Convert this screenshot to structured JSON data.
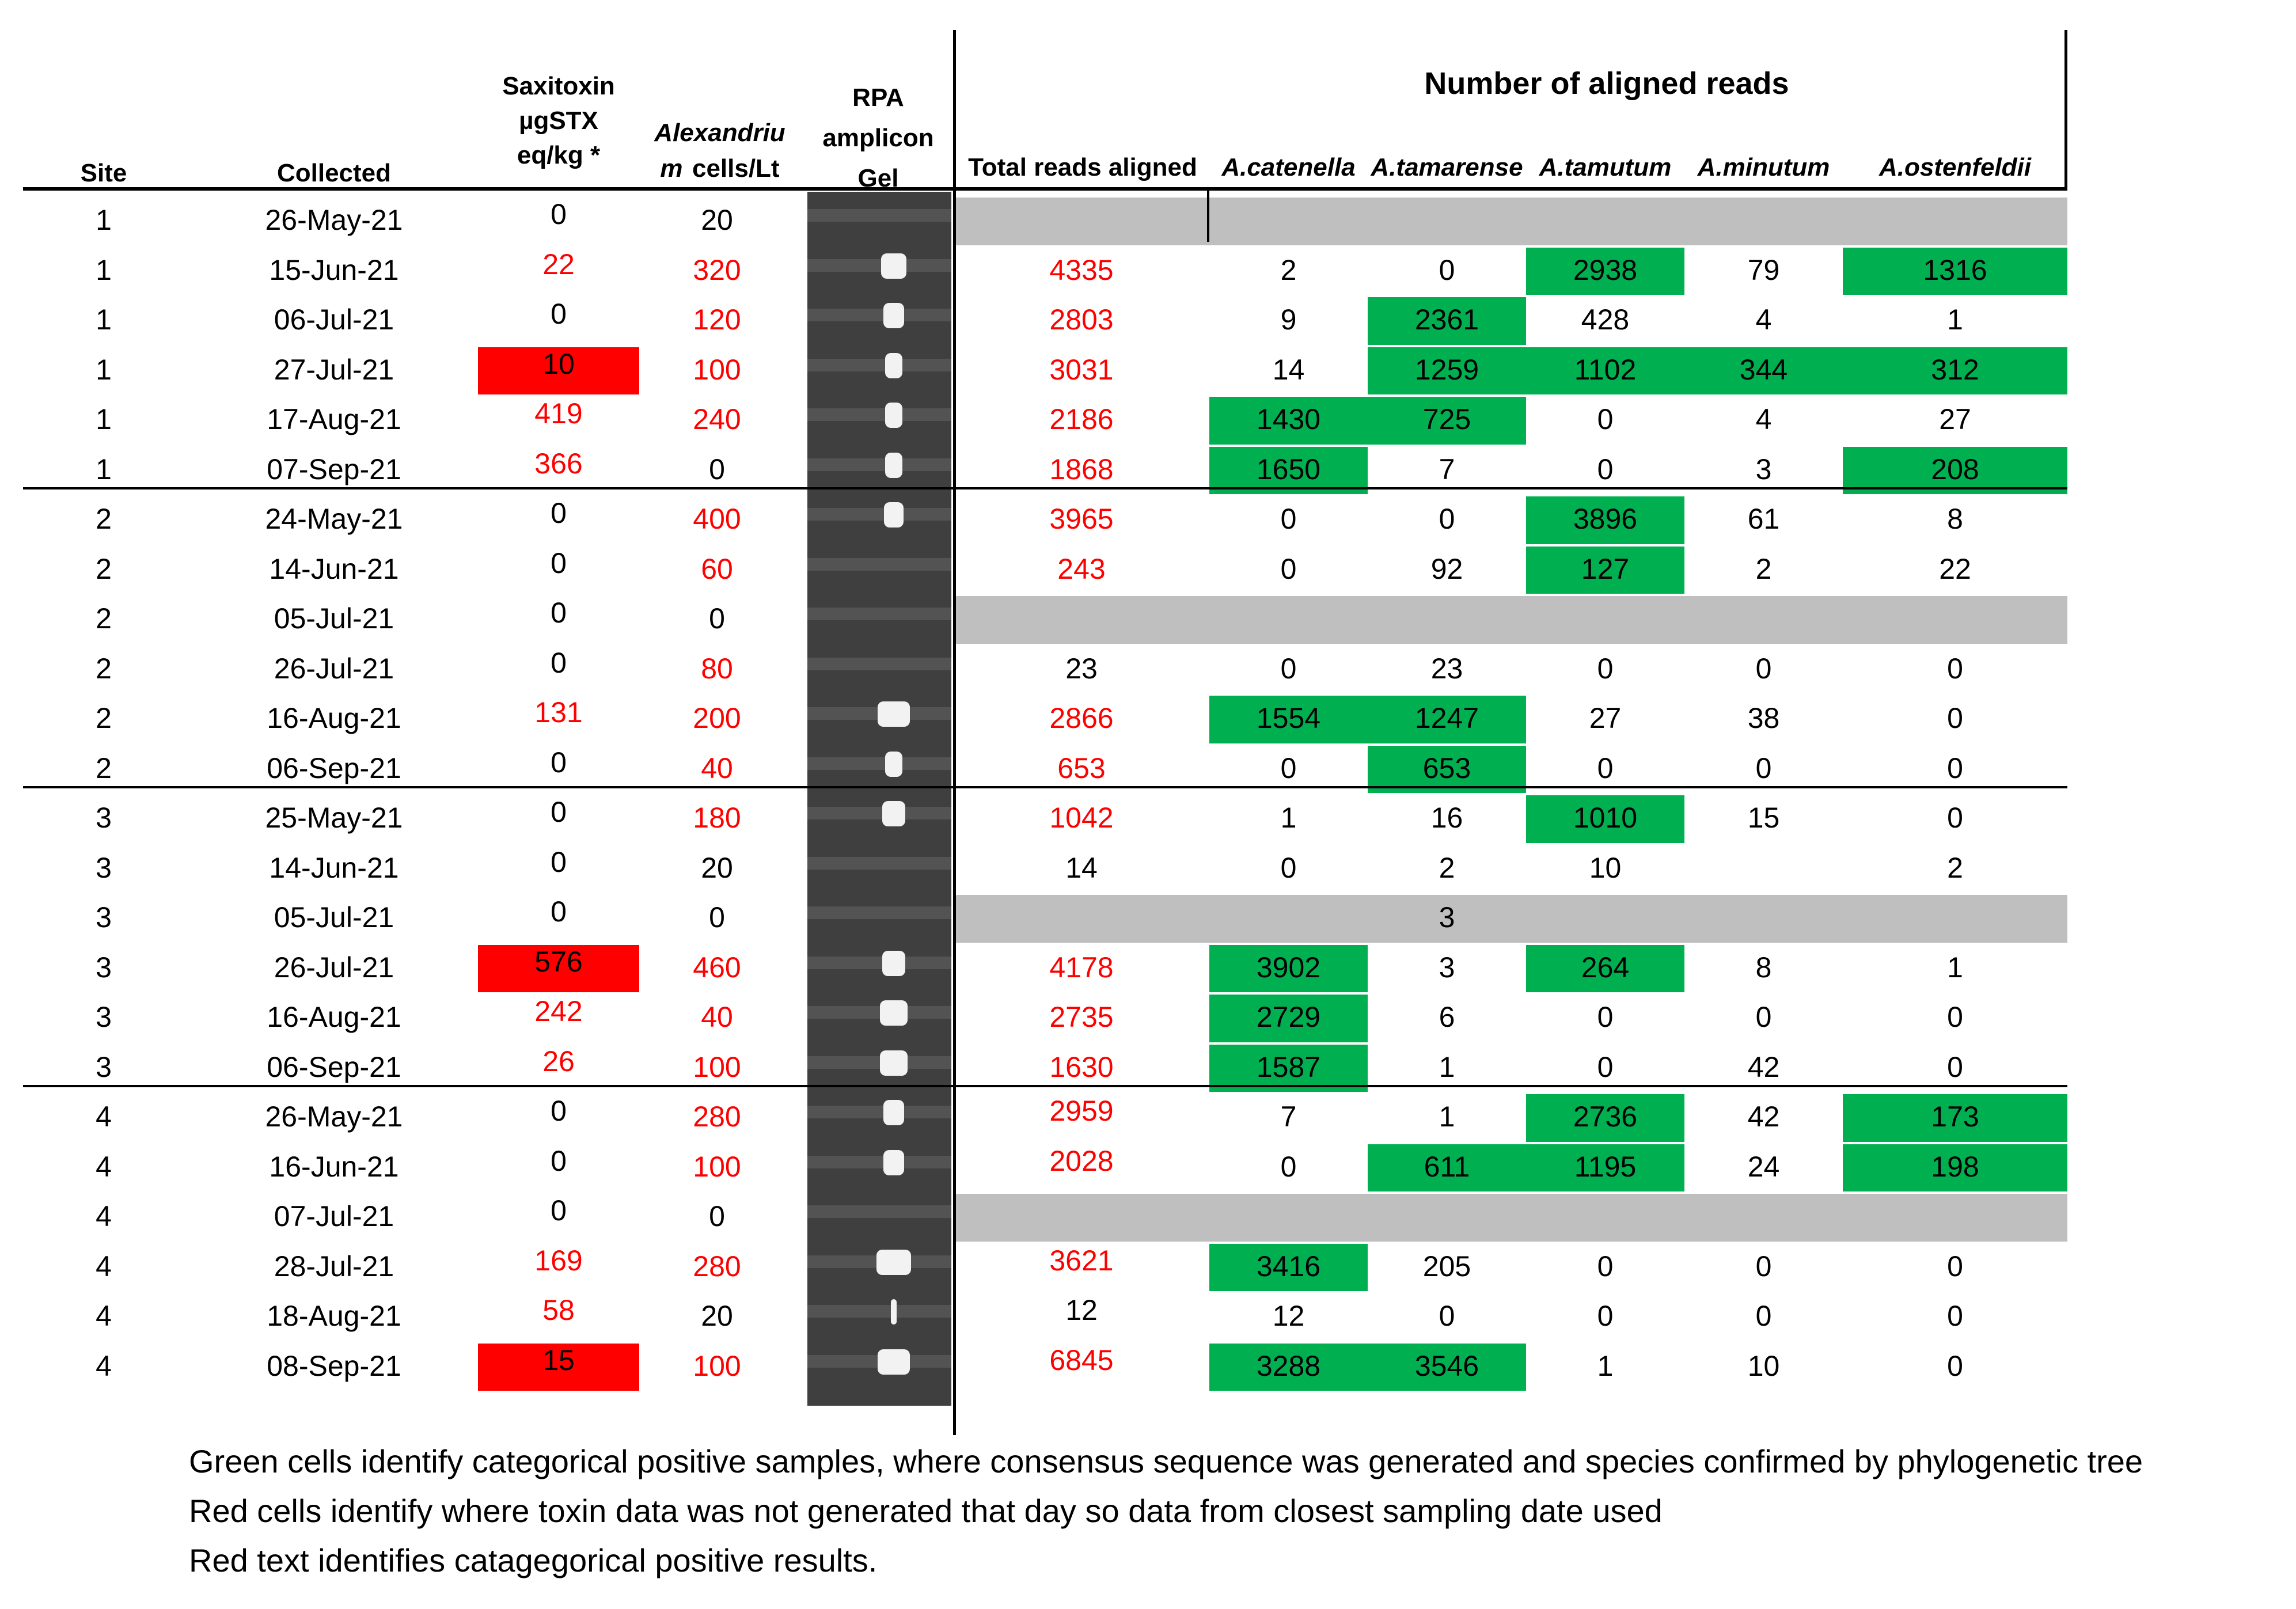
{
  "headers": {
    "site": "Site",
    "collected": "Collected",
    "saxitoxin_l1": "Saxitoxin",
    "saxitoxin_l2": "µgSTX",
    "saxitoxin_l3": "eq/kg *",
    "alex_l1": "Alexandriu",
    "alex_l2": "m",
    "alex_l2b": "cells/Lt",
    "rpa_l1": "RPA",
    "rpa_l2": "amplicon",
    "rpa_l3": "Gel",
    "aligned_title": "Number of aligned reads",
    "total": "Total reads aligned",
    "catenella": "A.catenella",
    "tamarense": "A.tamarense",
    "tamutum": "A.tamutum",
    "minutum": "A.minutum",
    "ostenfeldii": "A.ostenfeldii"
  },
  "colors": {
    "green": "#00b050",
    "red": "#ff0000",
    "grey": "#bfbfbf",
    "text_red": "#ff0000"
  },
  "rows": [
    {
      "site": "1",
      "date": "26-May-21",
      "stx": "0",
      "cells": "20",
      "total": "",
      "cat": "",
      "tam": "",
      "tmt": "",
      "min": "",
      "ost": ""
    },
    {
      "site": "1",
      "date": "15-Jun-21",
      "stx": "22",
      "cells": "320",
      "total": "4335",
      "cat": "2",
      "tam": "0",
      "tmt": "2938",
      "min": "79",
      "ost": "1316"
    },
    {
      "site": "1",
      "date": "06-Jul-21",
      "stx": "0",
      "cells": "120",
      "total": "2803",
      "cat": "9",
      "tam": "2361",
      "tmt": "428",
      "min": "4",
      "ost": "1"
    },
    {
      "site": "1",
      "date": "27-Jul-21",
      "stx": "10",
      "cells": "100",
      "total": "3031",
      "cat": "14",
      "tam": "1259",
      "tmt": "1102",
      "min": "344",
      "ost": "312"
    },
    {
      "site": "1",
      "date": "17-Aug-21",
      "stx": "419",
      "cells": "240",
      "total": "2186",
      "cat": "1430",
      "tam": "725",
      "tmt": "0",
      "min": "4",
      "ost": "27"
    },
    {
      "site": "1",
      "date": "07-Sep-21",
      "stx": "366",
      "cells": "0",
      "total": "1868",
      "cat": "1650",
      "tam": "7",
      "tmt": "0",
      "min": "3",
      "ost": "208"
    },
    {
      "site": "2",
      "date": "24-May-21",
      "stx": "0",
      "cells": "400",
      "total": "3965",
      "cat": "0",
      "tam": "0",
      "tmt": "3896",
      "min": "61",
      "ost": "8"
    },
    {
      "site": "2",
      "date": "14-Jun-21",
      "stx": "0",
      "cells": "60",
      "total": "243",
      "cat": "0",
      "tam": "92",
      "tmt": "127",
      "min": "2",
      "ost": "22"
    },
    {
      "site": "2",
      "date": "05-Jul-21",
      "stx": "0",
      "cells": "0",
      "total": "",
      "cat": "",
      "tam": "",
      "tmt": "",
      "min": "",
      "ost": ""
    },
    {
      "site": "2",
      "date": "26-Jul-21",
      "stx": "0",
      "cells": "80",
      "total": "23",
      "cat": "0",
      "tam": "23",
      "tmt": "0",
      "min": "0",
      "ost": "0"
    },
    {
      "site": "2",
      "date": "16-Aug-21",
      "stx": "131",
      "cells": "200",
      "total": "2866",
      "cat": "1554",
      "tam": "1247",
      "tmt": "27",
      "min": "38",
      "ost": "0"
    },
    {
      "site": "2",
      "date": "06-Sep-21",
      "stx": "0",
      "cells": "40",
      "total": "653",
      "cat": "0",
      "tam": "653",
      "tmt": "0",
      "min": "0",
      "ost": "0"
    },
    {
      "site": "3",
      "date": "25-May-21",
      "stx": "0",
      "cells": "180",
      "total": "1042",
      "cat": "1",
      "tam": "16",
      "tmt": "1010",
      "min": "15",
      "ost": "0"
    },
    {
      "site": "3",
      "date": "14-Jun-21",
      "stx": "0",
      "cells": "20",
      "total": "14",
      "cat": "0",
      "tam": "2",
      "tmt": "10",
      "min": "",
      "ost": "2"
    },
    {
      "site": "3",
      "date": "05-Jul-21",
      "stx": "0",
      "cells": "0",
      "total": "",
      "cat": "",
      "tam": "3",
      "tmt": "",
      "min": "",
      "ost": ""
    },
    {
      "site": "3",
      "date": "26-Jul-21",
      "stx": "576",
      "cells": "460",
      "total": "4178",
      "cat": "3902",
      "tam": "3",
      "tmt": "264",
      "min": "8",
      "ost": "1"
    },
    {
      "site": "3",
      "date": "16-Aug-21",
      "stx": "242",
      "cells": "40",
      "total": "2735",
      "cat": "2729",
      "tam": "6",
      "tmt": "0",
      "min": "0",
      "ost": "0"
    },
    {
      "site": "3",
      "date": "06-Sep-21",
      "stx": "26",
      "cells": "100",
      "total": "1630",
      "cat": "1587",
      "tam": "1",
      "tmt": "0",
      "min": "42",
      "ost": "0"
    },
    {
      "site": "4",
      "date": "26-May-21",
      "stx": "0",
      "cells": "280",
      "total": "2959",
      "cat": "7",
      "tam": "1",
      "tmt": "2736",
      "min": "42",
      "ost": "173"
    },
    {
      "site": "4",
      "date": "16-Jun-21",
      "stx": "0",
      "cells": "100",
      "total": "2028",
      "cat": "0",
      "tam": "611",
      "tmt": "1195",
      "min": "24",
      "ost": "198"
    },
    {
      "site": "4",
      "date": "07-Jul-21",
      "stx": "0",
      "cells": "0",
      "total": "",
      "cat": "",
      "tam": "",
      "tmt": "",
      "min": "",
      "ost": ""
    },
    {
      "site": "4",
      "date": "28-Jul-21",
      "stx": "169",
      "cells": "280",
      "total": "3621",
      "cat": "3416",
      "tam": "205",
      "tmt": "0",
      "min": "0",
      "ost": "0"
    },
    {
      "site": "4",
      "date": "18-Aug-21",
      "stx": "58",
      "cells": "20",
      "total": "12",
      "cat": "12",
      "tam": "0",
      "tmt": "0",
      "min": "0",
      "ost": "0"
    },
    {
      "site": "4",
      "date": "08-Sep-21",
      "stx": "15",
      "cells": "100",
      "total": "6845",
      "cat": "3288",
      "tam": "3546",
      "tmt": "1",
      "min": "10",
      "ost": "0"
    }
  ],
  "notes": {
    "green": "Green cells identify categorical positive samples, where consensus sequence was generated and species confirmed by phylogenetic tree",
    "red_cells": "Red cells identify where toxin data was not generated that day so data from closest sampling date used",
    "red_text": "Red text identifies catagegorical positive results."
  }
}
